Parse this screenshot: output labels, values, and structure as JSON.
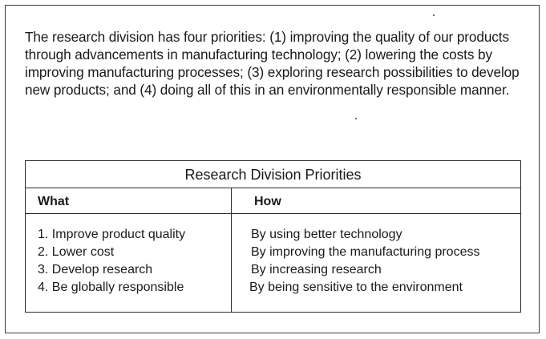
{
  "intro": {
    "text": "The research division has four priorities: (1) improving the quality of our products through advancements in manufacturing technology; (2) lowering the costs by improving manufacturing processes; (3) exploring research possibilities to develop new products; and (4) doing all of this in an environmentally responsible manner."
  },
  "table": {
    "title": "Research Division Priorities",
    "headers": {
      "what": "What",
      "how": "How"
    },
    "rows": [
      {
        "what": "1. Improve product quality",
        "how": "By using better technology"
      },
      {
        "what": "2. Lower cost",
        "how": "By improving the manufacturing process"
      },
      {
        "what": "3. Develop research",
        "how": "By increasing research"
      },
      {
        "what": "4. Be globally responsible",
        "how": "By being sensitive to the environment"
      }
    ]
  }
}
